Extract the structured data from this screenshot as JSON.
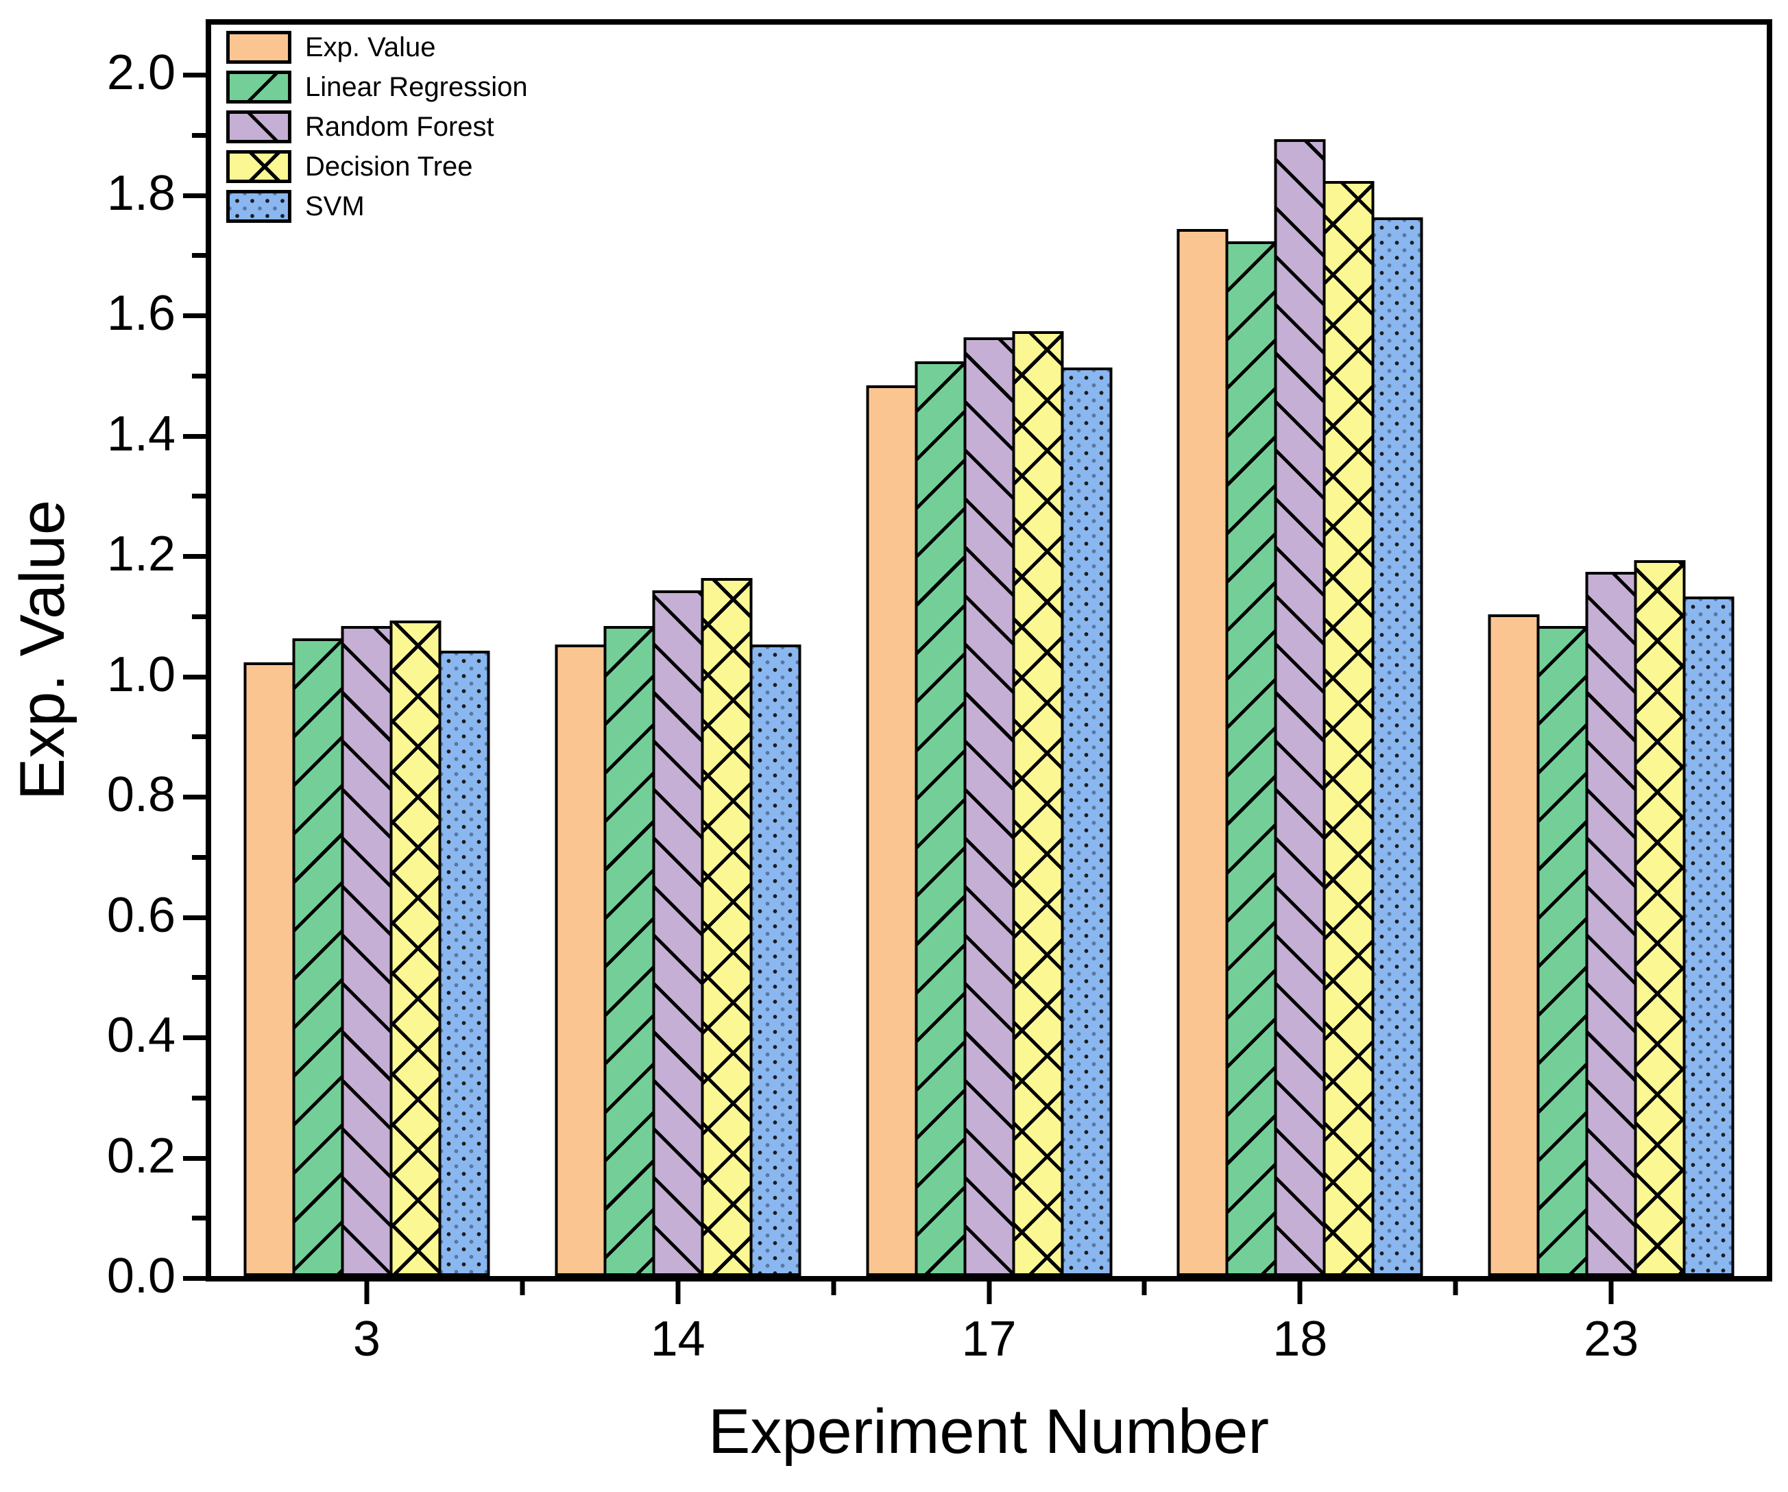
{
  "figure": {
    "background": "#ffffff",
    "frame_color": "#000000"
  },
  "axes": {
    "x": {
      "title": "Experiment Number",
      "tick_labels": [
        "3",
        "14",
        "17",
        "18",
        "23"
      ]
    },
    "y": {
      "title": "Exp. Value",
      "tick_labels": [
        "0.0",
        "0.2",
        "0.4",
        "0.6",
        "0.8",
        "1.0",
        "1.2",
        "1.4",
        "1.6",
        "1.8",
        "2.0"
      ],
      "min": 0,
      "max": 2.08,
      "major_step": 0.2,
      "minor_step": 0.1
    }
  },
  "legend": {
    "position": "top-left",
    "items": [
      {
        "label": "Exp. Value",
        "color": "#FBC592",
        "pattern": "solid"
      },
      {
        "label": "Linear Regression",
        "color": "#73CF97",
        "pattern": "diagonal-forward"
      },
      {
        "label": "Random Forest",
        "color": "#C5AFD4",
        "pattern": "diagonal-backward"
      },
      {
        "label": "Decision Tree",
        "color": "#FBF894",
        "pattern": "crosshatch"
      },
      {
        "label": "SVM",
        "color": "#8AB7EF",
        "pattern": "dots"
      }
    ]
  },
  "chart_data": {
    "type": "bar",
    "title": "",
    "xlabel": "Experiment Number",
    "ylabel": "Exp. Value",
    "categories": [
      "3",
      "14",
      "17",
      "18",
      "23"
    ],
    "series": [
      {
        "name": "Exp. Value",
        "color": "#FBC592",
        "pattern": "solid",
        "values": [
          1.02,
          1.05,
          1.48,
          1.74,
          1.1
        ]
      },
      {
        "name": "Linear Regression",
        "color": "#73CF97",
        "pattern": "diagonal-forward",
        "values": [
          1.06,
          1.08,
          1.52,
          1.72,
          1.08
        ]
      },
      {
        "name": "Random Forest",
        "color": "#C5AFD4",
        "pattern": "diagonal-backward",
        "values": [
          1.08,
          1.14,
          1.56,
          1.89,
          1.17
        ]
      },
      {
        "name": "Decision Tree",
        "color": "#FBF894",
        "pattern": "crosshatch",
        "values": [
          1.09,
          1.16,
          1.57,
          1.82,
          1.19
        ]
      },
      {
        "name": "SVM",
        "color": "#8AB7EF",
        "pattern": "dots",
        "values": [
          1.04,
          1.05,
          1.51,
          1.76,
          1.13
        ]
      }
    ],
    "ylim": [
      0,
      2.08
    ],
    "grid": false,
    "legend_position": "top-left"
  }
}
